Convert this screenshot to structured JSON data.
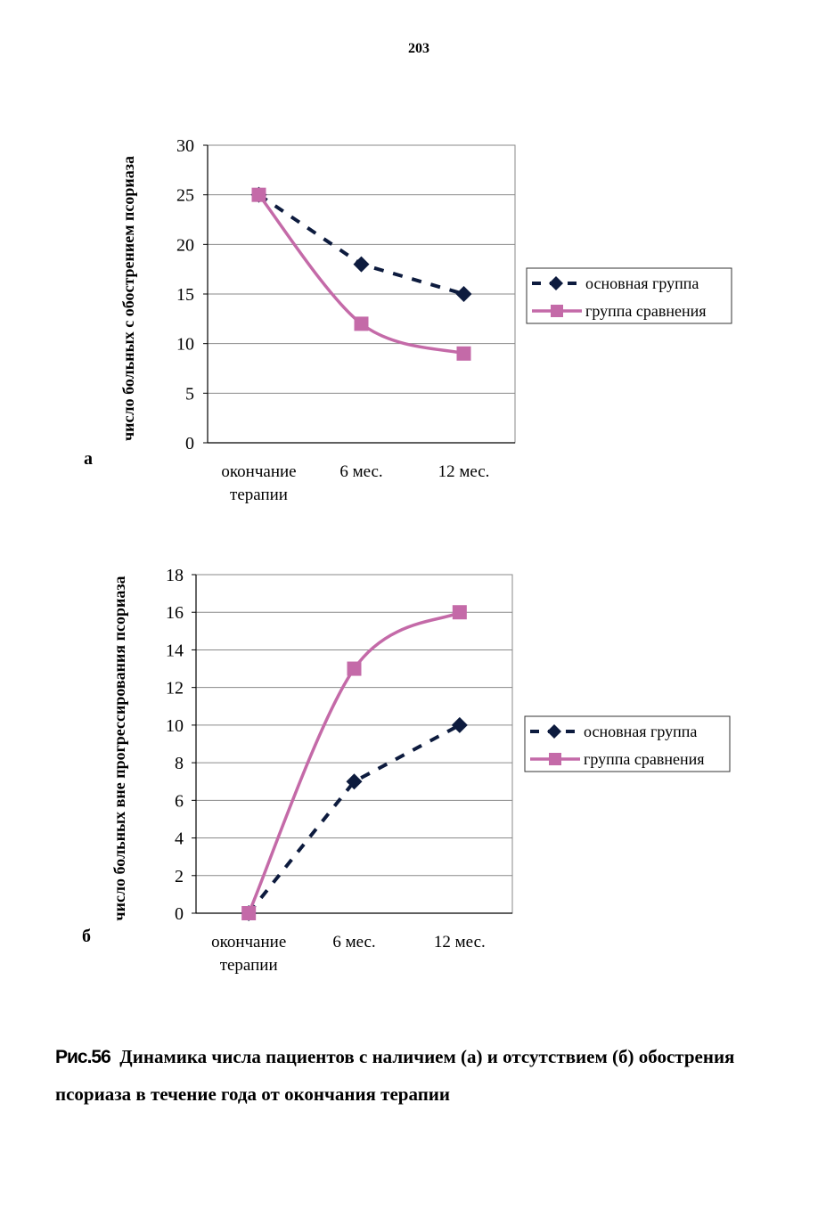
{
  "page": {
    "number": "203"
  },
  "panels": {
    "a": "а",
    "b": "б"
  },
  "caption": {
    "number": "Рис.56",
    "line1": "Динамика числа пациентов с наличием (а) и отсутствием (б) обострения",
    "line2": "псориаза в течение года от окончания терапии"
  },
  "colors": {
    "main_group": "#0d1b3e",
    "comparison_group": "#c46aa8",
    "grid": "#8a8a8a"
  },
  "chart_data": [
    {
      "type": "line",
      "panel": "а",
      "title": "",
      "xlabel": "",
      "ylabel": "число больных с обострением псориаза",
      "categories": [
        [
          "окончание",
          "терапии"
        ],
        [
          "6 мес."
        ],
        [
          "12 мес."
        ]
      ],
      "ylim": [
        0,
        30
      ],
      "yticks": [
        0,
        5,
        10,
        15,
        20,
        25,
        30
      ],
      "grid": true,
      "legend_position": "right",
      "series": [
        {
          "name": "основная группа",
          "values": [
            25,
            18,
            15
          ],
          "style": "dashed",
          "marker": "diamond",
          "color": "#0d1b3e"
        },
        {
          "name": "группа сравнения",
          "values": [
            25,
            12,
            9
          ],
          "style": "smooth",
          "marker": "square",
          "color": "#c46aa8"
        }
      ]
    },
    {
      "type": "line",
      "panel": "б",
      "title": "",
      "xlabel": "",
      "ylabel": "число больных вне прогрессирования псориаза",
      "categories": [
        [
          "окончание",
          "терапии"
        ],
        [
          "6 мес."
        ],
        [
          "12 мес."
        ]
      ],
      "ylim": [
        0,
        18
      ],
      "yticks": [
        0,
        2,
        4,
        6,
        8,
        10,
        12,
        14,
        16,
        18
      ],
      "grid": true,
      "legend_position": "right",
      "series": [
        {
          "name": "основная группа",
          "values": [
            0,
            7,
            10
          ],
          "style": "dashed",
          "marker": "diamond",
          "color": "#0d1b3e"
        },
        {
          "name": "группа сравнения",
          "values": [
            0,
            13,
            16
          ],
          "style": "smooth",
          "marker": "square",
          "color": "#c46aa8"
        }
      ]
    }
  ]
}
